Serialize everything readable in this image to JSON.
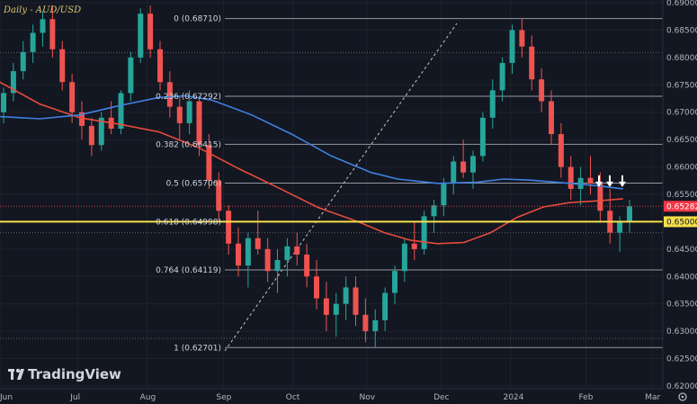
{
  "chart_data": {
    "type": "candlestick",
    "title": "Daily - AUD/USD",
    "x_labels": [
      "Jun",
      "Jul",
      "Aug",
      "Sep",
      "Oct",
      "Nov",
      "Dec",
      "2024",
      "Feb",
      "Mar"
    ],
    "y_ticks": [
      "0.69000",
      "0.68500",
      "0.68000",
      "0.67500",
      "0.67000",
      "0.66500",
      "0.66000",
      "0.65500",
      "0.65000",
      "0.64500",
      "0.64000",
      "0.63500",
      "0.63000",
      "0.62500",
      "0.62000"
    ],
    "ylim": [
      0.6195,
      0.6905
    ],
    "current_price": "0.65282",
    "level_price": "0.65000",
    "levels": [
      {
        "label": "0 (0.68710)",
        "value": 0.6871
      },
      {
        "label": "0.236 (0.67292)",
        "value": 0.67292
      },
      {
        "label": "0.382 (0.66415)",
        "value": 0.66415
      },
      {
        "label": "0.5 (0.65706)",
        "value": 0.65706
      },
      {
        "label": "0.618 (0.64998)",
        "value": 0.64998
      },
      {
        "label": "0.764 (0.64119)",
        "value": 0.64119
      },
      {
        "label": "1 (0.62701)",
        "value": 0.62701
      }
    ],
    "extra_gridlines": [
      0.6809,
      0.648,
      0.6287
    ],
    "moving_averages": [
      {
        "color": "#e74c3c",
        "points": [
          [
            0,
            0.6755
          ],
          [
            0.06,
            0.6715
          ],
          [
            0.12,
            0.669
          ],
          [
            0.18,
            0.6678
          ],
          [
            0.24,
            0.6664
          ],
          [
            0.3,
            0.6635
          ],
          [
            0.36,
            0.6597
          ],
          [
            0.42,
            0.6562
          ],
          [
            0.48,
            0.6526
          ],
          [
            0.54,
            0.65
          ],
          [
            0.58,
            0.648
          ],
          [
            0.62,
            0.6466
          ],
          [
            0.66,
            0.646
          ],
          [
            0.7,
            0.6462
          ],
          [
            0.74,
            0.648
          ],
          [
            0.78,
            0.6508
          ],
          [
            0.82,
            0.6527
          ],
          [
            0.86,
            0.6535
          ],
          [
            0.9,
            0.6538
          ],
          [
            0.94,
            0.6542
          ]
        ]
      },
      {
        "color": "#3f82e0",
        "points": [
          [
            0,
            0.6692
          ],
          [
            0.06,
            0.6688
          ],
          [
            0.12,
            0.6695
          ],
          [
            0.18,
            0.6712
          ],
          [
            0.24,
            0.6727
          ],
          [
            0.28,
            0.673
          ],
          [
            0.32,
            0.6722
          ],
          [
            0.38,
            0.6695
          ],
          [
            0.44,
            0.666
          ],
          [
            0.5,
            0.662
          ],
          [
            0.56,
            0.659
          ],
          [
            0.6,
            0.6578
          ],
          [
            0.66,
            0.657
          ],
          [
            0.72,
            0.6572
          ],
          [
            0.76,
            0.6578
          ],
          [
            0.8,
            0.6576
          ],
          [
            0.86,
            0.657
          ],
          [
            0.9,
            0.6566
          ],
          [
            0.94,
            0.656
          ]
        ]
      }
    ],
    "candles": [
      [
        0.67,
        0.6745,
        0.668,
        0.6735
      ],
      [
        0.6735,
        0.679,
        0.672,
        0.6775
      ],
      [
        0.6775,
        0.683,
        0.676,
        0.681
      ],
      [
        0.681,
        0.686,
        0.679,
        0.6845
      ],
      [
        0.6845,
        0.6885,
        0.682,
        0.687
      ],
      [
        0.687,
        0.6895,
        0.68,
        0.6815
      ],
      [
        0.6815,
        0.683,
        0.674,
        0.6755
      ],
      [
        0.6755,
        0.677,
        0.668,
        0.67
      ],
      [
        0.67,
        0.672,
        0.665,
        0.6675
      ],
      [
        0.6675,
        0.669,
        0.662,
        0.664
      ],
      [
        0.664,
        0.67,
        0.663,
        0.669
      ],
      [
        0.669,
        0.672,
        0.666,
        0.667
      ],
      [
        0.667,
        0.674,
        0.666,
        0.6735
      ],
      [
        0.6735,
        0.681,
        0.672,
        0.68
      ],
      [
        0.68,
        0.689,
        0.679,
        0.688
      ],
      [
        0.688,
        0.6895,
        0.68,
        0.6815
      ],
      [
        0.6815,
        0.683,
        0.674,
        0.6755
      ],
      [
        0.6755,
        0.6775,
        0.669,
        0.671
      ],
      [
        0.671,
        0.673,
        0.665,
        0.668
      ],
      [
        0.668,
        0.674,
        0.666,
        0.672
      ],
      [
        0.672,
        0.673,
        0.662,
        0.664
      ],
      [
        0.664,
        0.666,
        0.656,
        0.6575
      ],
      [
        0.6575,
        0.659,
        0.65,
        0.652
      ],
      [
        0.652,
        0.653,
        0.644,
        0.646
      ],
      [
        0.646,
        0.649,
        0.64,
        0.642
      ],
      [
        0.642,
        0.648,
        0.638,
        0.647
      ],
      [
        0.647,
        0.652,
        0.644,
        0.645
      ],
      [
        0.645,
        0.647,
        0.639,
        0.641
      ],
      [
        0.641,
        0.645,
        0.637,
        0.643
      ],
      [
        0.643,
        0.647,
        0.64,
        0.6455
      ],
      [
        0.6455,
        0.648,
        0.642,
        0.644
      ],
      [
        0.644,
        0.646,
        0.638,
        0.64
      ],
      [
        0.64,
        0.643,
        0.634,
        0.636
      ],
      [
        0.636,
        0.639,
        0.63,
        0.633
      ],
      [
        0.633,
        0.637,
        0.629,
        0.635
      ],
      [
        0.635,
        0.64,
        0.632,
        0.638
      ],
      [
        0.638,
        0.64,
        0.631,
        0.633
      ],
      [
        0.633,
        0.636,
        0.628,
        0.63
      ],
      [
        0.63,
        0.634,
        0.627,
        0.632
      ],
      [
        0.632,
        0.638,
        0.63,
        0.637
      ],
      [
        0.637,
        0.642,
        0.635,
        0.641
      ],
      [
        0.641,
        0.647,
        0.639,
        0.646
      ],
      [
        0.646,
        0.65,
        0.643,
        0.645
      ],
      [
        0.645,
        0.652,
        0.644,
        0.651
      ],
      [
        0.651,
        0.654,
        0.648,
        0.653
      ],
      [
        0.653,
        0.658,
        0.651,
        0.657
      ],
      [
        0.657,
        0.662,
        0.655,
        0.661
      ],
      [
        0.661,
        0.665,
        0.658,
        0.659
      ],
      [
        0.659,
        0.663,
        0.656,
        0.662
      ],
      [
        0.662,
        0.67,
        0.661,
        0.669
      ],
      [
        0.669,
        0.676,
        0.667,
        0.674
      ],
      [
        0.674,
        0.68,
        0.672,
        0.679
      ],
      [
        0.679,
        0.686,
        0.677,
        0.685
      ],
      [
        0.685,
        0.6871,
        0.68,
        0.682
      ],
      [
        0.682,
        0.684,
        0.674,
        0.676
      ],
      [
        0.676,
        0.678,
        0.67,
        0.672
      ],
      [
        0.672,
        0.674,
        0.664,
        0.666
      ],
      [
        0.666,
        0.668,
        0.658,
        0.66
      ],
      [
        0.66,
        0.662,
        0.654,
        0.656
      ],
      [
        0.656,
        0.66,
        0.653,
        0.658
      ],
      [
        0.658,
        0.662,
        0.655,
        0.657
      ],
      [
        0.657,
        0.659,
        0.65,
        0.652
      ],
      [
        0.652,
        0.656,
        0.646,
        0.648
      ],
      [
        0.648,
        0.651,
        0.6445,
        0.65
      ],
      [
        0.65,
        0.654,
        0.648,
        0.6528
      ]
    ]
  },
  "arrows_count": 3
}
